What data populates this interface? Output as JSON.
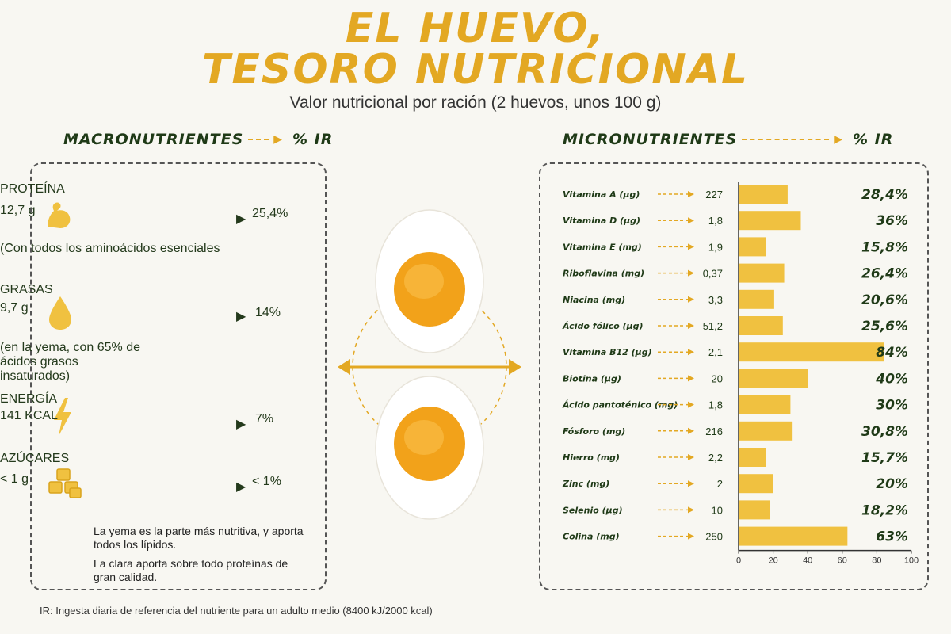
{
  "title_line1": "EL HUEVO,",
  "title_line2": "TESORO NUTRICIONAL",
  "subtitle": "Valor nutricional por ración (2 huevos, unos 100 g)",
  "macro_header": "MACRONUTRIENTES",
  "macro_header_pct": "% IR",
  "micro_header": "MICRONUTRIENTES",
  "micro_header_pct": "% IR",
  "macros": [
    {
      "name": "PROTEÍNA",
      "value": "12,7 g",
      "pct": "25,4%",
      "note": "(Con todos los aminoácidos esenciales",
      "icon": "bicep-icon"
    },
    {
      "name": "GRASAS",
      "value": "9,7 g",
      "pct": "14%",
      "note": "(en la yema, con 65% de ácidos grasos insaturados)",
      "icon": "drop-icon"
    },
    {
      "name": "ENERGÍA",
      "value": "141 KCAL",
      "pct": "7%",
      "note": "",
      "icon": "lightning-icon"
    },
    {
      "name": "AZÚCARES",
      "value": "< 1 g",
      "pct": "< 1%",
      "note": "",
      "icon": "sugar-cubes-icon"
    }
  ],
  "macro_note_1": "La yema es la parte más nutritiva, y aporta todos los lípidos.",
  "macro_note_2": "La clara aporta sobre todo proteínas de gran calidad.",
  "footnote": "IR: Ingesta diaria de referencia del nutriente para un adulto medio (8400 kJ/2000 kcal)",
  "colors": {
    "accent": "#e3a823",
    "bar": "#f0c140",
    "text": "#1f3a17"
  },
  "chart_data": {
    "type": "bar",
    "orientation": "horizontal",
    "categories": [
      "Vitamina A (µg)",
      "Vitamina D (µg)",
      "Vitamina E (mg)",
      "Riboflavina (mg)",
      "Niacina (mg)",
      "Ácido fólico (µg)",
      "Vitamina B12 (µg)",
      "Biotina (µg)",
      "Ácido pantoténico (mg)",
      "Fósforo (mg)",
      "Hierro (mg)",
      "Zinc (mg)",
      "Selenio (µg)",
      "Colina (mg)"
    ],
    "amounts": [
      "227",
      "1,8",
      "1,9",
      "0,37",
      "3,3",
      "51,2",
      "2,1",
      "20",
      "1,8",
      "216",
      "2,2",
      "2",
      "10",
      "250"
    ],
    "values": [
      28.4,
      36,
      15.8,
      26.4,
      20.6,
      25.6,
      84,
      40,
      30,
      30.8,
      15.7,
      20,
      18.2,
      63
    ],
    "value_labels": [
      "28,4%",
      "36%",
      "15,8%",
      "26,4%",
      "20,6%",
      "25,6%",
      "84%",
      "40%",
      "30%",
      "30,8%",
      "15,7%",
      "20%",
      "18,2%",
      "63%"
    ],
    "xlim": [
      0,
      100
    ],
    "xticks": [
      "0",
      "20",
      "40",
      "60",
      "80",
      "100"
    ],
    "grid": false
  }
}
